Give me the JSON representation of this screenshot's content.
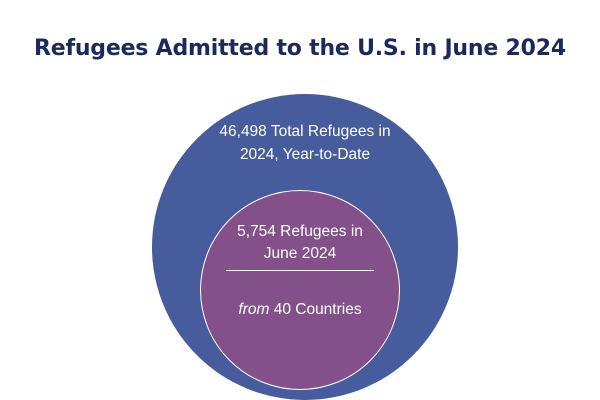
{
  "title": "Refugees Admitted to the U.S. in June 2024",
  "outer": {
    "line1": "46,498 Total Refugees in",
    "line2": "2024, Year-to-Date"
  },
  "inner": {
    "line1": "5,754 Refugees in",
    "line2": "June 2024",
    "from_italic": "from",
    "from_rest": "40 Countries"
  },
  "colors": {
    "title": "#1b2a5c",
    "outer_circle": "#465c9c",
    "inner_circle": "#83508a",
    "text": "#ffffff"
  }
}
